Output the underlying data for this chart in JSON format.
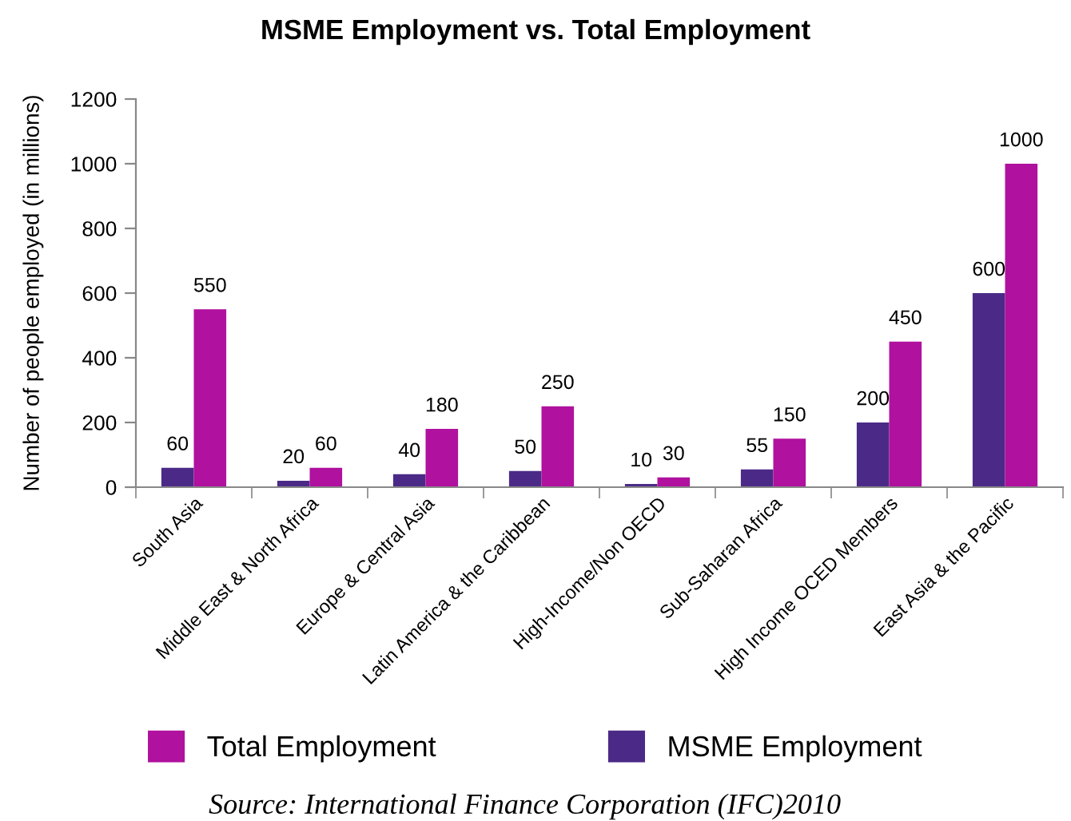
{
  "chart_data": {
    "type": "bar",
    "title": "MSME Employment vs. Total Employment",
    "ylabel": "Number of people employed (in millions)",
    "categories": [
      "South Asia",
      "Middle East & North Africa",
      "Europe & Central Asia",
      "Latin America & the Caribbean",
      "High-Income/Non OECD",
      "Sub-Saharan Africa",
      "High Income OCED Members",
      "East Asia & the Pacific"
    ],
    "series": [
      {
        "name": "MSME Employment",
        "color": "#4b2a87",
        "values": [
          60,
          20,
          40,
          50,
          10,
          55,
          200,
          600
        ]
      },
      {
        "name": "Total Employment",
        "color": "#b0119e",
        "values": [
          550,
          60,
          180,
          250,
          30,
          150,
          450,
          1000
        ]
      }
    ],
    "ylim": [
      0,
      1200
    ],
    "yticks": [
      0,
      200,
      400,
      600,
      800,
      1000,
      1200
    ],
    "grid": false,
    "legend": "bottom",
    "data_labels": true,
    "annotations": [
      "Source: International Finance Corporation (IFC)2010"
    ]
  }
}
